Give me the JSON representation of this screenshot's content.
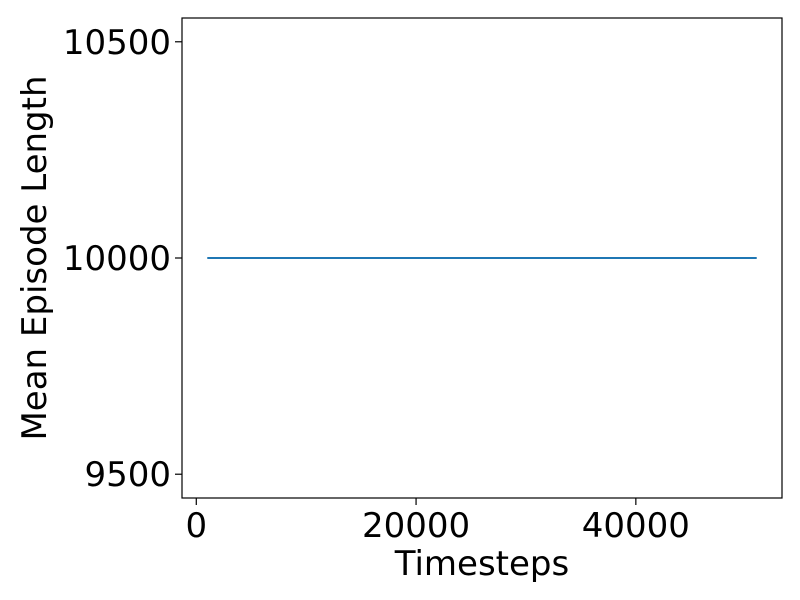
{
  "chart_data": {
    "type": "line",
    "title": "",
    "xlabel": "Timesteps",
    "ylabel": "Mean Episode Length",
    "xlim": [
      -1300,
      53300
    ],
    "ylim": [
      9445,
      10555
    ],
    "x_ticks": [
      0,
      20000,
      40000
    ],
    "x_tick_labels": [
      "0",
      "20000",
      "40000"
    ],
    "y_ticks": [
      9500,
      10000,
      10500
    ],
    "y_tick_labels": [
      "9500",
      "10000",
      "10500"
    ],
    "grid": false,
    "legend": "none",
    "series": [
      {
        "color": "#1f77b4",
        "x": [
          1000,
          51000
        ],
        "y": [
          10000,
          10000
        ]
      }
    ]
  }
}
